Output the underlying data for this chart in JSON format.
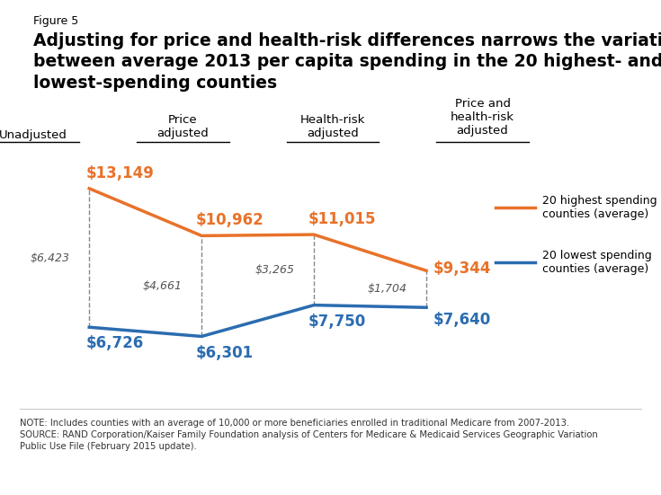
{
  "figure_label": "Figure 5",
  "title": "Adjusting for price and health-risk differences narrows the variation\nbetween average 2013 per capita spending in the 20 highest- and\nlowest-spending counties",
  "categories": [
    "Unadjusted",
    "Price\nadjusted",
    "Health-risk\nadjusted",
    "Price and\nhealth-risk\nadjusted"
  ],
  "high_values": [
    13149,
    10962,
    11015,
    9344
  ],
  "low_values": [
    6726,
    6301,
    7750,
    7640
  ],
  "diff_values": [
    6423,
    4661,
    3265,
    1704
  ],
  "high_labels": [
    "$13,149",
    "$10,962",
    "$11,015",
    "$9,344"
  ],
  "low_labels": [
    "$6,726",
    "$6,301",
    "$7,750",
    "$7,640"
  ],
  "diff_labels": [
    "$6,423",
    "$4,661",
    "$3,265",
    "$1,704"
  ],
  "high_color": "#E8722A",
  "low_color": "#2B6CB0",
  "diff_color": "#555555",
  "legend_high": "20 highest spending\ncounties (average)",
  "legend_low": "20 lowest spending\ncounties (average)",
  "note": "NOTE: Includes counties with an average of 10,000 or more beneficiaries enrolled in traditional Medicare from 2007-2013.\nSOURCE: RAND Corporation/Kaiser Family Foundation analysis of Centers for Medicare & Medicaid Services Geographic Variation\nPublic Use File (February 2015 update).",
  "ylim_min": 4000,
  "ylim_max": 15000,
  "background_color": "#ffffff"
}
